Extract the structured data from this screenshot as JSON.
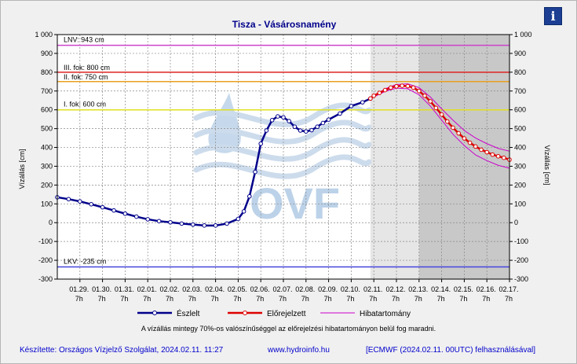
{
  "header": {
    "title": "Tisza - Vásárosnamény",
    "info_icon": "info-icon",
    "info_label": "i"
  },
  "chart_data": {
    "type": "line",
    "title": "Tisza - Vásárosnamény",
    "ylabel_left": "Vízállás [cm]",
    "ylabel_right": "Vízállás [cm]",
    "ylim": [
      -300,
      1000
    ],
    "yticks": [
      -300,
      -200,
      -100,
      0,
      100,
      200,
      300,
      400,
      500,
      600,
      700,
      800,
      900,
      1000
    ],
    "ytick_labels": [
      "-300",
      "-200",
      "-100",
      "0",
      "100",
      "200",
      "300",
      "400",
      "500",
      "600",
      "700",
      "800",
      "900",
      "1 000"
    ],
    "x_start": "01.28. 7h",
    "x_end": "02.17. 7h",
    "xticks": [
      {
        "day": 1,
        "l1": "01.29.",
        "l2": "7h"
      },
      {
        "day": 2,
        "l1": "01.30.",
        "l2": "7h"
      },
      {
        "day": 3,
        "l1": "01.31.",
        "l2": "7h"
      },
      {
        "day": 4,
        "l1": "02.01.",
        "l2": "7h"
      },
      {
        "day": 5,
        "l1": "02.02.",
        "l2": "7h"
      },
      {
        "day": 6,
        "l1": "02.03.",
        "l2": "7h"
      },
      {
        "day": 7,
        "l1": "02.04.",
        "l2": "7h"
      },
      {
        "day": 8,
        "l1": "02.05.",
        "l2": "7h"
      },
      {
        "day": 9,
        "l1": "02.06.",
        "l2": "7h"
      },
      {
        "day": 10,
        "l1": "02.07.",
        "l2": "7h"
      },
      {
        "day": 11,
        "l1": "02.08.",
        "l2": "7h"
      },
      {
        "day": 12,
        "l1": "02.09.",
        "l2": "7h"
      },
      {
        "day": 13,
        "l1": "02.10.",
        "l2": "7h"
      },
      {
        "day": 14,
        "l1": "02.11.",
        "l2": "7h"
      },
      {
        "day": 15,
        "l1": "02.12.",
        "l2": "7h"
      },
      {
        "day": 16,
        "l1": "02.13.",
        "l2": "7h"
      },
      {
        "day": 17,
        "l1": "02.14.",
        "l2": "7h"
      },
      {
        "day": 18,
        "l1": "02.15.",
        "l2": "7h"
      },
      {
        "day": 19,
        "l1": "02.16.",
        "l2": "7h"
      },
      {
        "day": 20,
        "l1": "02.17.",
        "l2": "7h"
      }
    ],
    "forecast_region": {
      "light_start_day": 13.85,
      "dark_start_day": 16.0,
      "light_color": "#e6e6e6",
      "dark_color": "#c8c8c8"
    },
    "levels": [
      {
        "name": "LNV",
        "label": "LNV: 943 cm",
        "value": 943,
        "color": "#cc44cc"
      },
      {
        "name": "III. fok",
        "label": "III. fok: 800 cm",
        "value": 800,
        "color": "#dd2222"
      },
      {
        "name": "II. fok",
        "label": "II. fok: 750 cm",
        "value": 750,
        "color": "#e8a020"
      },
      {
        "name": "I. fok",
        "label": "I. fok: 600 cm",
        "value": 600,
        "color": "#e0e020"
      },
      {
        "name": "LKV",
        "label": "LKV: -235 cm",
        "value": -235,
        "color": "#4444dd"
      }
    ],
    "series": [
      {
        "name": "Észlelt",
        "color": "#00008b",
        "x": [
          0,
          0.5,
          1,
          1.5,
          2,
          2.5,
          3,
          3.5,
          4,
          4.5,
          5,
          5.5,
          6,
          6.5,
          7,
          7.5,
          8,
          8.25,
          8.5,
          8.75,
          9,
          9.25,
          9.5,
          9.75,
          10,
          10.25,
          10.5,
          10.75,
          11,
          11.25,
          11.5,
          11.75,
          12,
          12.5,
          13,
          13.5,
          13.85
        ],
        "y": [
          135,
          125,
          113,
          98,
          82,
          65,
          48,
          32,
          18,
          8,
          2,
          -5,
          -10,
          -15,
          -15,
          -5,
          20,
          60,
          140,
          270,
          420,
          490,
          545,
          565,
          560,
          540,
          510,
          490,
          485,
          492,
          510,
          530,
          548,
          580,
          620,
          640,
          660
        ]
      },
      {
        "name": "Előrejelzett",
        "color": "#dd0000",
        "x": [
          13.85,
          14,
          14.25,
          14.5,
          14.75,
          15,
          15.25,
          15.5,
          15.75,
          16,
          16.25,
          16.5,
          16.75,
          17,
          17.25,
          17.5,
          17.75,
          18,
          18.25,
          18.5,
          18.75,
          19,
          19.25,
          19.5,
          19.75,
          20
        ],
        "y": [
          660,
          675,
          690,
          705,
          718,
          725,
          728,
          726,
          718,
          700,
          675,
          645,
          610,
          575,
          538,
          505,
          475,
          448,
          425,
          405,
          388,
          375,
          362,
          353,
          345,
          335
        ]
      },
      {
        "name": "Hibatartomány",
        "color": "#cc00cc",
        "x": [
          13.85,
          14.5,
          15,
          15.5,
          16,
          16.5,
          17,
          17.5,
          18,
          18.5,
          19,
          19.5,
          20
        ],
        "upper": [
          660,
          712,
          735,
          738,
          718,
          668,
          605,
          545,
          490,
          450,
          420,
          395,
          380
        ],
        "lower": [
          660,
          698,
          715,
          712,
          680,
          620,
          545,
          470,
          410,
          360,
          330,
          305,
          290
        ]
      }
    ],
    "legend": {
      "position": "bottom",
      "items": [
        {
          "label": "Észlelt",
          "color": "#00008b",
          "marker": true
        },
        {
          "label": "Előrejelzett",
          "color": "#dd0000",
          "marker": true
        },
        {
          "label": "Hibatartomány",
          "color": "#cc00cc",
          "marker": false
        }
      ]
    },
    "grid": true
  },
  "watermark": {
    "text": "OVF"
  },
  "note": "A vízállás mintegy 70%-os valószínűséggel az előrejelzési hibatartományon belül fog maradni.",
  "footer": {
    "made_by": "Készítette: Országos Vízjelző Szolgálat, 2024.02.11. 11:27",
    "website": "www.hydroinfo.hu",
    "model": "[ECMWF (2024.02.11. 00UTC) felhasználásával]"
  }
}
